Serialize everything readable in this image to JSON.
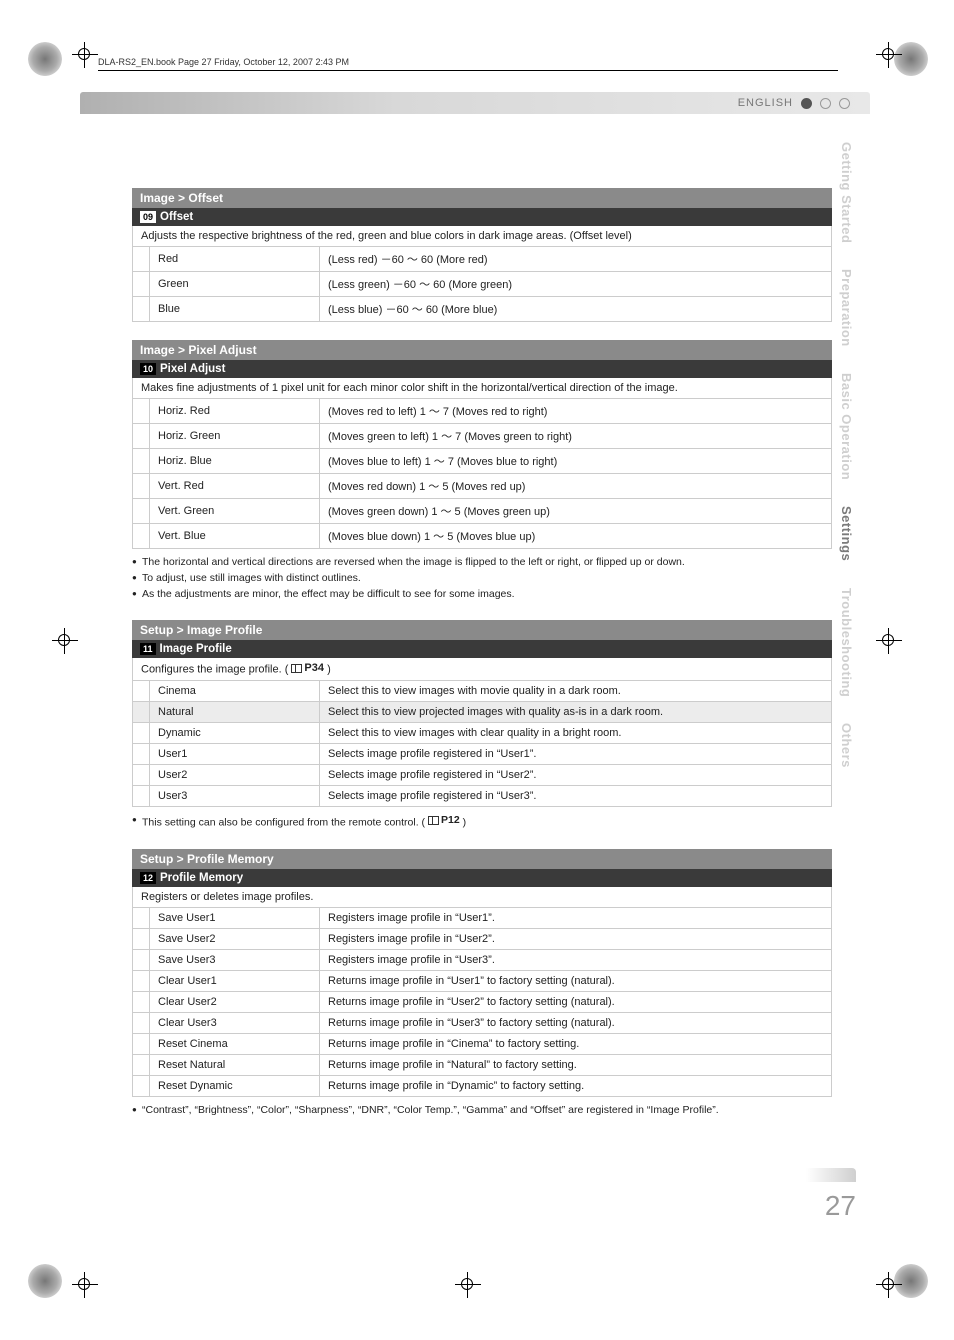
{
  "meta": {
    "header_text": "DLA-RS2_EN.book  Page 27  Friday, October 12, 2007  2:43 PM",
    "language_label": "ENGLISH",
    "page_number": "27"
  },
  "sidebar": {
    "items": [
      {
        "label": "Getting Started",
        "active": false
      },
      {
        "label": "Preparation",
        "active": false
      },
      {
        "label": "Basic Operation",
        "active": false
      },
      {
        "label": "Settings",
        "active": true
      },
      {
        "label": "Troubleshooting",
        "active": false
      },
      {
        "label": "Others",
        "active": false
      }
    ]
  },
  "sections": {
    "offset": {
      "title": "Image > Offset",
      "num": "09",
      "sub": "Offset",
      "desc": "Adjusts the respective brightness of the red, green and blue colors in dark image areas. (Offset level)",
      "rows": [
        {
          "key": "Red",
          "val": "(Less red) －60 ～ 60 (More red)"
        },
        {
          "key": "Green",
          "val": "(Less green) －60 ～ 60 (More green)"
        },
        {
          "key": "Blue",
          "val": "(Less blue) －60 ～ 60 (More blue)"
        }
      ]
    },
    "pixel": {
      "title": "Image > Pixel Adjust",
      "num": "10",
      "sub": "Pixel Adjust",
      "desc": "Makes fine adjustments of 1 pixel unit for each minor color shift in the horizontal/vertical direction of the image.",
      "rows": [
        {
          "key": "Horiz. Red",
          "val": "(Moves red to left) 1 ～ 7 (Moves red to right)"
        },
        {
          "key": "Horiz. Green",
          "val": "(Moves green to left) 1 ～ 7 (Moves green to right)"
        },
        {
          "key": "Horiz. Blue",
          "val": "(Moves blue to left) 1 ～ 7 (Moves blue to right)"
        },
        {
          "key": "Vert. Red",
          "val": "(Moves red down) 1 ～ 5 (Moves red up)"
        },
        {
          "key": "Vert. Green",
          "val": "(Moves green down) 1 ～ 5 (Moves green up)"
        },
        {
          "key": "Vert. Blue",
          "val": "(Moves blue down) 1 ～ 5 (Moves blue up)"
        }
      ],
      "bullets": [
        "The horizontal and vertical directions are reversed when the image is flipped to the left or right, or flipped up or down.",
        "To adjust, use still images with distinct outlines.",
        "As the adjustments are minor, the effect may be difficult to see for some images."
      ]
    },
    "profile": {
      "title": "Setup > Image Profile",
      "num": "11",
      "sub": "Image Profile",
      "desc_pre": "Configures the image profile. (",
      "desc_ref": "P34",
      "desc_post": ")",
      "rows": [
        {
          "key": "Cinema",
          "val": "Select this to view images with movie quality in a dark room.",
          "hl": false
        },
        {
          "key": "Natural",
          "val": "Select this to view projected images with quality as-is in a dark room.",
          "hl": true
        },
        {
          "key": "Dynamic",
          "val": "Select this to view images with clear quality in a bright room.",
          "hl": false
        },
        {
          "key": "User1",
          "val": "Selects image profile registered in “User1”.",
          "hl": false
        },
        {
          "key": "User2",
          "val": "Selects image profile registered in “User2”.",
          "hl": false
        },
        {
          "key": "User3",
          "val": "Selects image profile registered in “User3”.",
          "hl": false
        }
      ],
      "bullet_pre": "This setting can also be configured from the remote control. (",
      "bullet_ref": "P12",
      "bullet_post": ")"
    },
    "memory": {
      "title": "Setup > Profile Memory",
      "num": "12",
      "sub": "Profile Memory",
      "desc": "Registers or deletes image profiles.",
      "rows": [
        {
          "key": "Save User1",
          "val": "Registers image profile in “User1”."
        },
        {
          "key": "Save User2",
          "val": "Registers image profile in “User2”."
        },
        {
          "key": "Save User3",
          "val": "Registers image profile in “User3”."
        },
        {
          "key": "Clear User1",
          "val": "Returns image profile in “User1” to factory setting (natural)."
        },
        {
          "key": "Clear User2",
          "val": "Returns image profile in “User2” to factory setting (natural)."
        },
        {
          "key": "Clear User3",
          "val": "Returns image profile in “User3” to factory setting (natural)."
        },
        {
          "key": "Reset Cinema",
          "val": "Returns image profile in “Cinema” to factory setting."
        },
        {
          "key": "Reset Natural",
          "val": "Returns image profile in “Natural” to factory setting."
        },
        {
          "key": "Reset Dynamic",
          "val": "Returns image profile in “Dynamic” to factory setting."
        }
      ],
      "bullets": [
        "“Contrast”, “Brightness”, “Color”, “Sharpness”, “DNR”, “Color Temp.”, “Gamma” and “Offset” are registered in “Image Profile”."
      ]
    }
  }
}
